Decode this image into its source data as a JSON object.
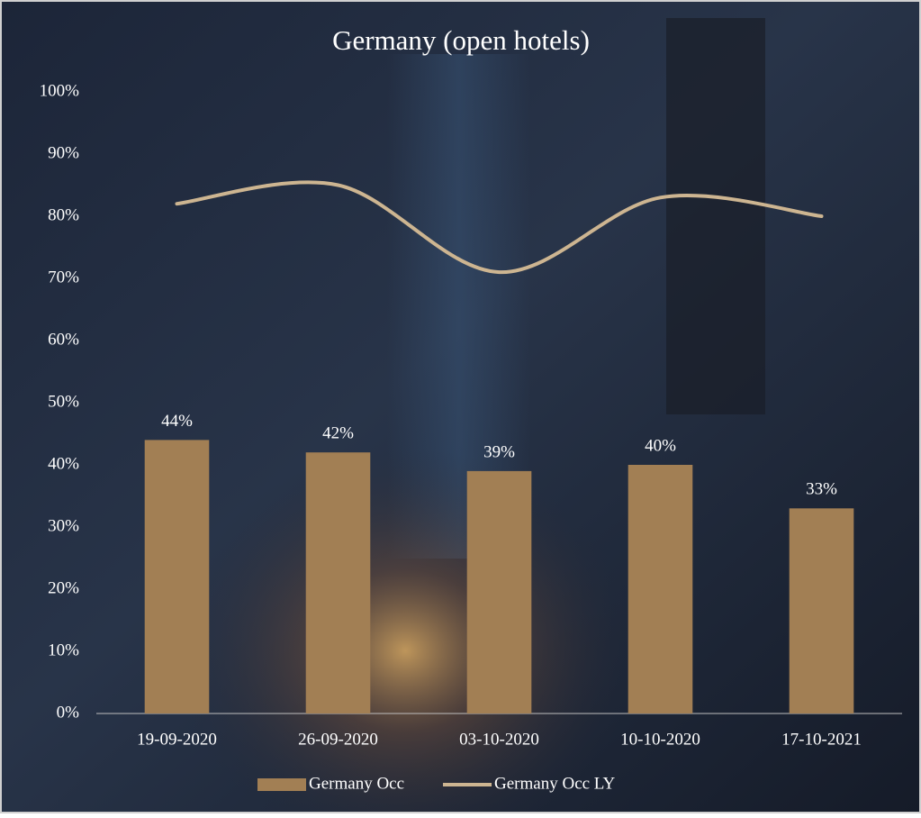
{
  "chart_data": {
    "type": "combo",
    "title": "Germany (open hotels)",
    "categories": [
      "19-09-2020",
      "26-09-2020",
      "03-10-2020",
      "10-10-2020",
      "17-10-2021"
    ],
    "series": [
      {
        "name": "Germany Occ",
        "type": "bar",
        "color": "#a27f54",
        "values": [
          44,
          42,
          39,
          40,
          33
        ],
        "value_labels": [
          "44%",
          "42%",
          "39%",
          "40%",
          "33%"
        ]
      },
      {
        "name": "Germany Occ LY",
        "type": "line",
        "color": "#cdb591",
        "smooth": true,
        "values": [
          82,
          85,
          71,
          83,
          80
        ]
      }
    ],
    "ylim": [
      0,
      100
    ],
    "yticks": [
      {
        "value": 0,
        "label": "0%"
      },
      {
        "value": 10,
        "label": "10%"
      },
      {
        "value": 20,
        "label": "20%"
      },
      {
        "value": 30,
        "label": "30%"
      },
      {
        "value": 40,
        "label": "40%"
      },
      {
        "value": 50,
        "label": "50%"
      },
      {
        "value": 60,
        "label": "60%"
      },
      {
        "value": 70,
        "label": "70%"
      },
      {
        "value": 80,
        "label": "80%"
      },
      {
        "value": 90,
        "label": "90%"
      },
      {
        "value": 100,
        "label": "100%"
      }
    ],
    "grid": false,
    "legend": "bottom"
  }
}
